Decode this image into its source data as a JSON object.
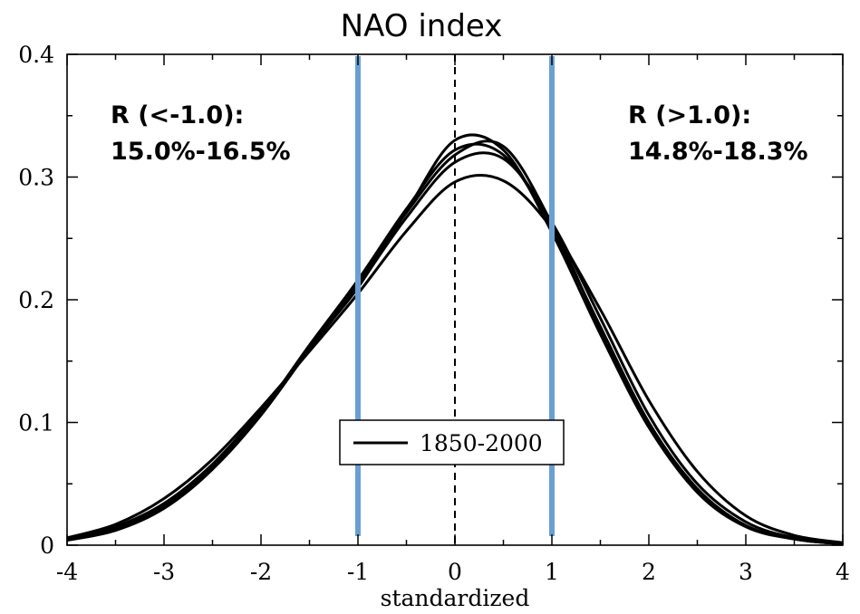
{
  "chart_data": {
    "type": "line",
    "title": "NAO index",
    "xlabel": "standardized",
    "ylabel": "",
    "xlim": [
      -4,
      4
    ],
    "ylim": [
      0,
      0.4
    ],
    "x_ticks": [
      -4,
      -3,
      -2,
      -1,
      0,
      1,
      2,
      3,
      4
    ],
    "x_tick_labels": [
      "-4",
      "-3",
      "-2",
      "-1",
      "0",
      "1",
      "2",
      "3",
      "4"
    ],
    "y_ticks": [
      0,
      0.1,
      0.2,
      0.3,
      0.4
    ],
    "y_tick_labels": [
      "0",
      "0.1",
      "0.2",
      "0.3",
      "0.4"
    ],
    "grid": false,
    "legend": {
      "position": "bottom-center",
      "entries": [
        "1850-2000"
      ]
    },
    "series": [
      {
        "x": [
          -4,
          -3.5,
          -3,
          -2.5,
          -2,
          -1.5,
          -1,
          -0.5,
          0,
          0.5,
          1,
          1.5,
          2,
          2.5,
          3,
          3.5,
          4
        ],
        "y": [
          0.004,
          0.012,
          0.03,
          0.062,
          0.108,
          0.163,
          0.216,
          0.274,
          0.322,
          0.318,
          0.258,
          0.178,
          0.1,
          0.046,
          0.016,
          0.005,
          0.001
        ]
      },
      {
        "x": [
          -4,
          -3.5,
          -3,
          -2.5,
          -2,
          -1.5,
          -1,
          -0.5,
          0,
          0.5,
          1,
          1.5,
          2,
          2.5,
          3,
          3.5,
          4
        ],
        "y": [
          0.005,
          0.015,
          0.034,
          0.066,
          0.11,
          0.16,
          0.211,
          0.267,
          0.312,
          0.315,
          0.263,
          0.185,
          0.106,
          0.05,
          0.019,
          0.006,
          0.002
        ]
      },
      {
        "x": [
          -4,
          -3.5,
          -3,
          -2.5,
          -2,
          -1.5,
          -1,
          -0.5,
          0,
          0.5,
          1,
          1.5,
          2,
          2.5,
          3,
          3.5,
          4
        ],
        "y": [
          0.006,
          0.017,
          0.038,
          0.07,
          0.112,
          0.158,
          0.205,
          0.256,
          0.296,
          0.297,
          0.258,
          0.192,
          0.118,
          0.06,
          0.024,
          0.008,
          0.002
        ]
      },
      {
        "x": [
          -4,
          -3.5,
          -3,
          -2.5,
          -2,
          -1.5,
          -1,
          -0.5,
          0,
          0.5,
          1,
          1.5,
          2,
          2.5,
          3,
          3.5,
          4
        ],
        "y": [
          0.004,
          0.013,
          0.031,
          0.062,
          0.106,
          0.16,
          0.214,
          0.271,
          0.318,
          0.325,
          0.262,
          0.176,
          0.097,
          0.043,
          0.015,
          0.005,
          0.001
        ]
      },
      {
        "x": [
          -4,
          -3.5,
          -3,
          -2.5,
          -2,
          -1.5,
          -1,
          -0.5,
          0,
          0.5,
          1,
          1.5,
          2,
          2.5,
          3,
          3.5,
          4
        ],
        "y": [
          0.005,
          0.014,
          0.033,
          0.065,
          0.109,
          0.161,
          0.21,
          0.272,
          0.33,
          0.322,
          0.255,
          0.172,
          0.096,
          0.044,
          0.016,
          0.005,
          0.001
        ]
      }
    ],
    "reference_lines": [
      {
        "x": 0,
        "style": "dashed",
        "color": "#000000"
      },
      {
        "x": -1,
        "style": "solid",
        "color": "#6a9fd4"
      },
      {
        "x": 1,
        "style": "solid",
        "color": "#6a9fd4"
      }
    ],
    "annotations": {
      "left": {
        "line1": "R (<-1.0):",
        "line2": "15.0%-16.5%"
      },
      "right": {
        "line1": "R (>1.0):",
        "line2": "14.8%-18.3%"
      }
    },
    "colors": {
      "curve": "#000000",
      "threshold": "#6a9fd4"
    }
  }
}
